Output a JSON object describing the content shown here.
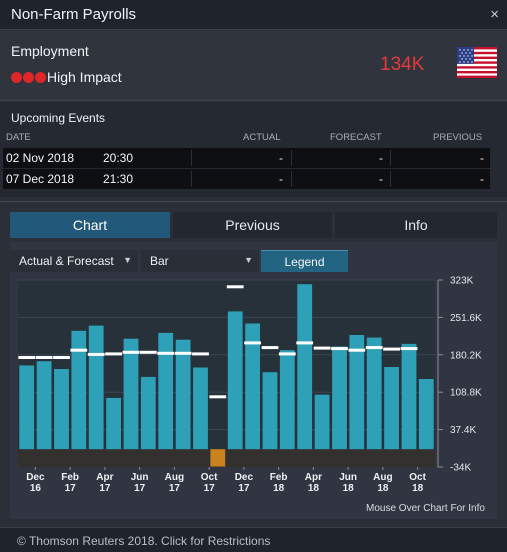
{
  "window": {
    "title": "Non-Farm Payrolls",
    "close_glyph": "×"
  },
  "event": {
    "category": "Employment",
    "impact_label": "High Impact",
    "impact_color": "#e1262a",
    "value": "134K",
    "value_color": "#e6393c",
    "flag_icon": "us-flag-icon"
  },
  "upcoming": {
    "header": "Upcoming Events",
    "columns": [
      "DATE",
      "ACTUAL",
      "FORECAST",
      "PREVIOUS"
    ],
    "rows": [
      {
        "date": "02 Nov 2018",
        "time": "20:30",
        "actual": "-",
        "forecast": "-",
        "previous": "-"
      },
      {
        "date": "07 Dec 2018",
        "time": "21:30",
        "actual": "-",
        "forecast": "-",
        "previous": "-"
      }
    ]
  },
  "tabs": [
    "Chart",
    "Previous",
    "Info"
  ],
  "active_tab": "Chart",
  "controls": {
    "series_select": "Actual & Forecast",
    "type_select": "Bar",
    "legend_button": "Legend"
  },
  "chart_data": {
    "type": "bar",
    "series": [
      {
        "values": [
          160,
          168,
          153,
          226,
          236,
          98,
          211,
          138,
          222,
          209,
          156,
          -33,
          263,
          240,
          147,
          189,
          315,
          104,
          196,
          218,
          213,
          157,
          201,
          134
        ],
        "color": "#2ea1b8"
      },
      {
        "values": [
          175,
          175,
          175,
          189,
          181,
          182,
          185,
          185,
          183,
          183,
          182,
          100,
          310,
          203,
          194,
          182,
          203,
          193,
          192,
          189,
          194,
          191,
          192,
          null
        ],
        "color": "#ffffff"
      }
    ],
    "negative_color": "#c9821d",
    "x_tick_labels": [
      [
        "Dec",
        "16"
      ],
      [
        "Feb",
        "17"
      ],
      [
        "Apr",
        "17"
      ],
      [
        "Jun",
        "17"
      ],
      [
        "Aug",
        "17"
      ],
      [
        "Oct",
        "17"
      ],
      [
        "Dec",
        "17"
      ],
      [
        "Feb",
        "18"
      ],
      [
        "Apr",
        "18"
      ],
      [
        "Jun",
        "18"
      ],
      [
        "Aug",
        "18"
      ],
      [
        "Oct",
        "18"
      ]
    ],
    "y_ticks": [
      -34,
      37.4,
      108.8,
      180.2,
      251.6,
      323
    ],
    "y_tick_labels": [
      "-34K",
      "37.4K",
      "108.8K",
      "180.2K",
      "251.6K",
      "323K"
    ],
    "ylim": [
      -34,
      323
    ],
    "grid": true
  },
  "chart_hint": "Mouse Over Chart For Info",
  "footer": {
    "text": "© Thomson Reuters 2018. Click for Restrictions"
  }
}
